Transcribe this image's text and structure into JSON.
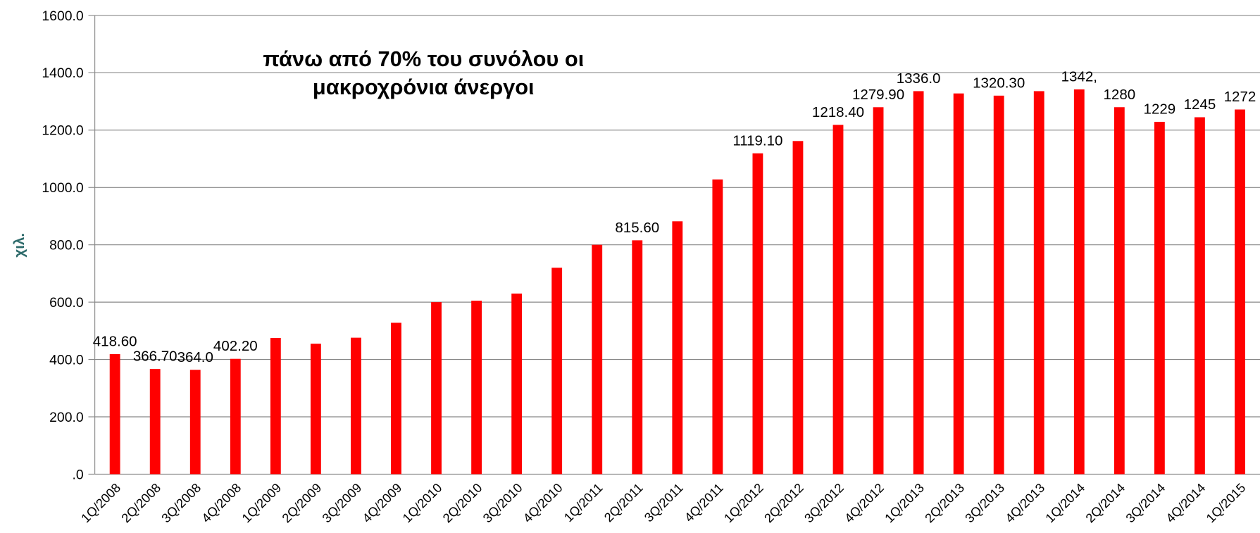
{
  "chart_data": {
    "type": "bar",
    "annotation": [
      "πάνω από 70% του συνόλου οι",
      "μακροχρόνια άνεργοι"
    ],
    "ylabel": "χιλ.",
    "categories": [
      "1Q/2008",
      "2Q/2008",
      "3Q/2008",
      "4Q/2008",
      "1Q/2009",
      "2Q/2009",
      "3Q/2009",
      "4Q/2009",
      "1Q/2010",
      "2Q/2010",
      "3Q/2010",
      "4Q/2010",
      "1Q/2011",
      "2Q/2011",
      "3Q/2011",
      "4Q/2011",
      "1Q/2012",
      "2Q/2012",
      "3Q/2012",
      "4Q/2012",
      "1Q/2013",
      "2Q/2013",
      "3Q/2013",
      "4Q/2013",
      "1Q/2014",
      "2Q/2014",
      "3Q/2014",
      "4Q/2014",
      "1Q/2015"
    ],
    "values": [
      418.6,
      366.7,
      364.0,
      402.2,
      475,
      455,
      476,
      528,
      600,
      605,
      630,
      720,
      800,
      815.6,
      882,
      1028,
      1119.1,
      1162,
      1218.4,
      1279.9,
      1336.0,
      1328,
      1320.3,
      1336,
      1342,
      1280,
      1229,
      1245,
      1272
    ],
    "value_labels": [
      "418.60",
      "366.70",
      "364.0",
      "402.20",
      null,
      null,
      null,
      null,
      null,
      null,
      null,
      null,
      null,
      "815.60",
      null,
      null,
      "1119.10",
      null,
      "1218.40",
      "1279.90",
      "1336.0",
      null,
      "1320.30",
      null,
      "1342,",
      "1280",
      "1229",
      "1245",
      "1272"
    ],
    "color": "#ff0000",
    "ylim": [
      0,
      1600
    ],
    "yticks": [
      {
        "value": 0,
        "label": ".0"
      },
      {
        "value": 200,
        "label": "200.0"
      },
      {
        "value": 400,
        "label": "400.0"
      },
      {
        "value": 600,
        "label": "600.0"
      },
      {
        "value": 800,
        "label": "800.0"
      },
      {
        "value": 1000,
        "label": "1000.0"
      },
      {
        "value": 1200,
        "label": "1200.0"
      },
      {
        "value": 1400,
        "label": "1400.0"
      },
      {
        "value": 1600,
        "label": "1600.0"
      }
    ],
    "grid": true
  }
}
